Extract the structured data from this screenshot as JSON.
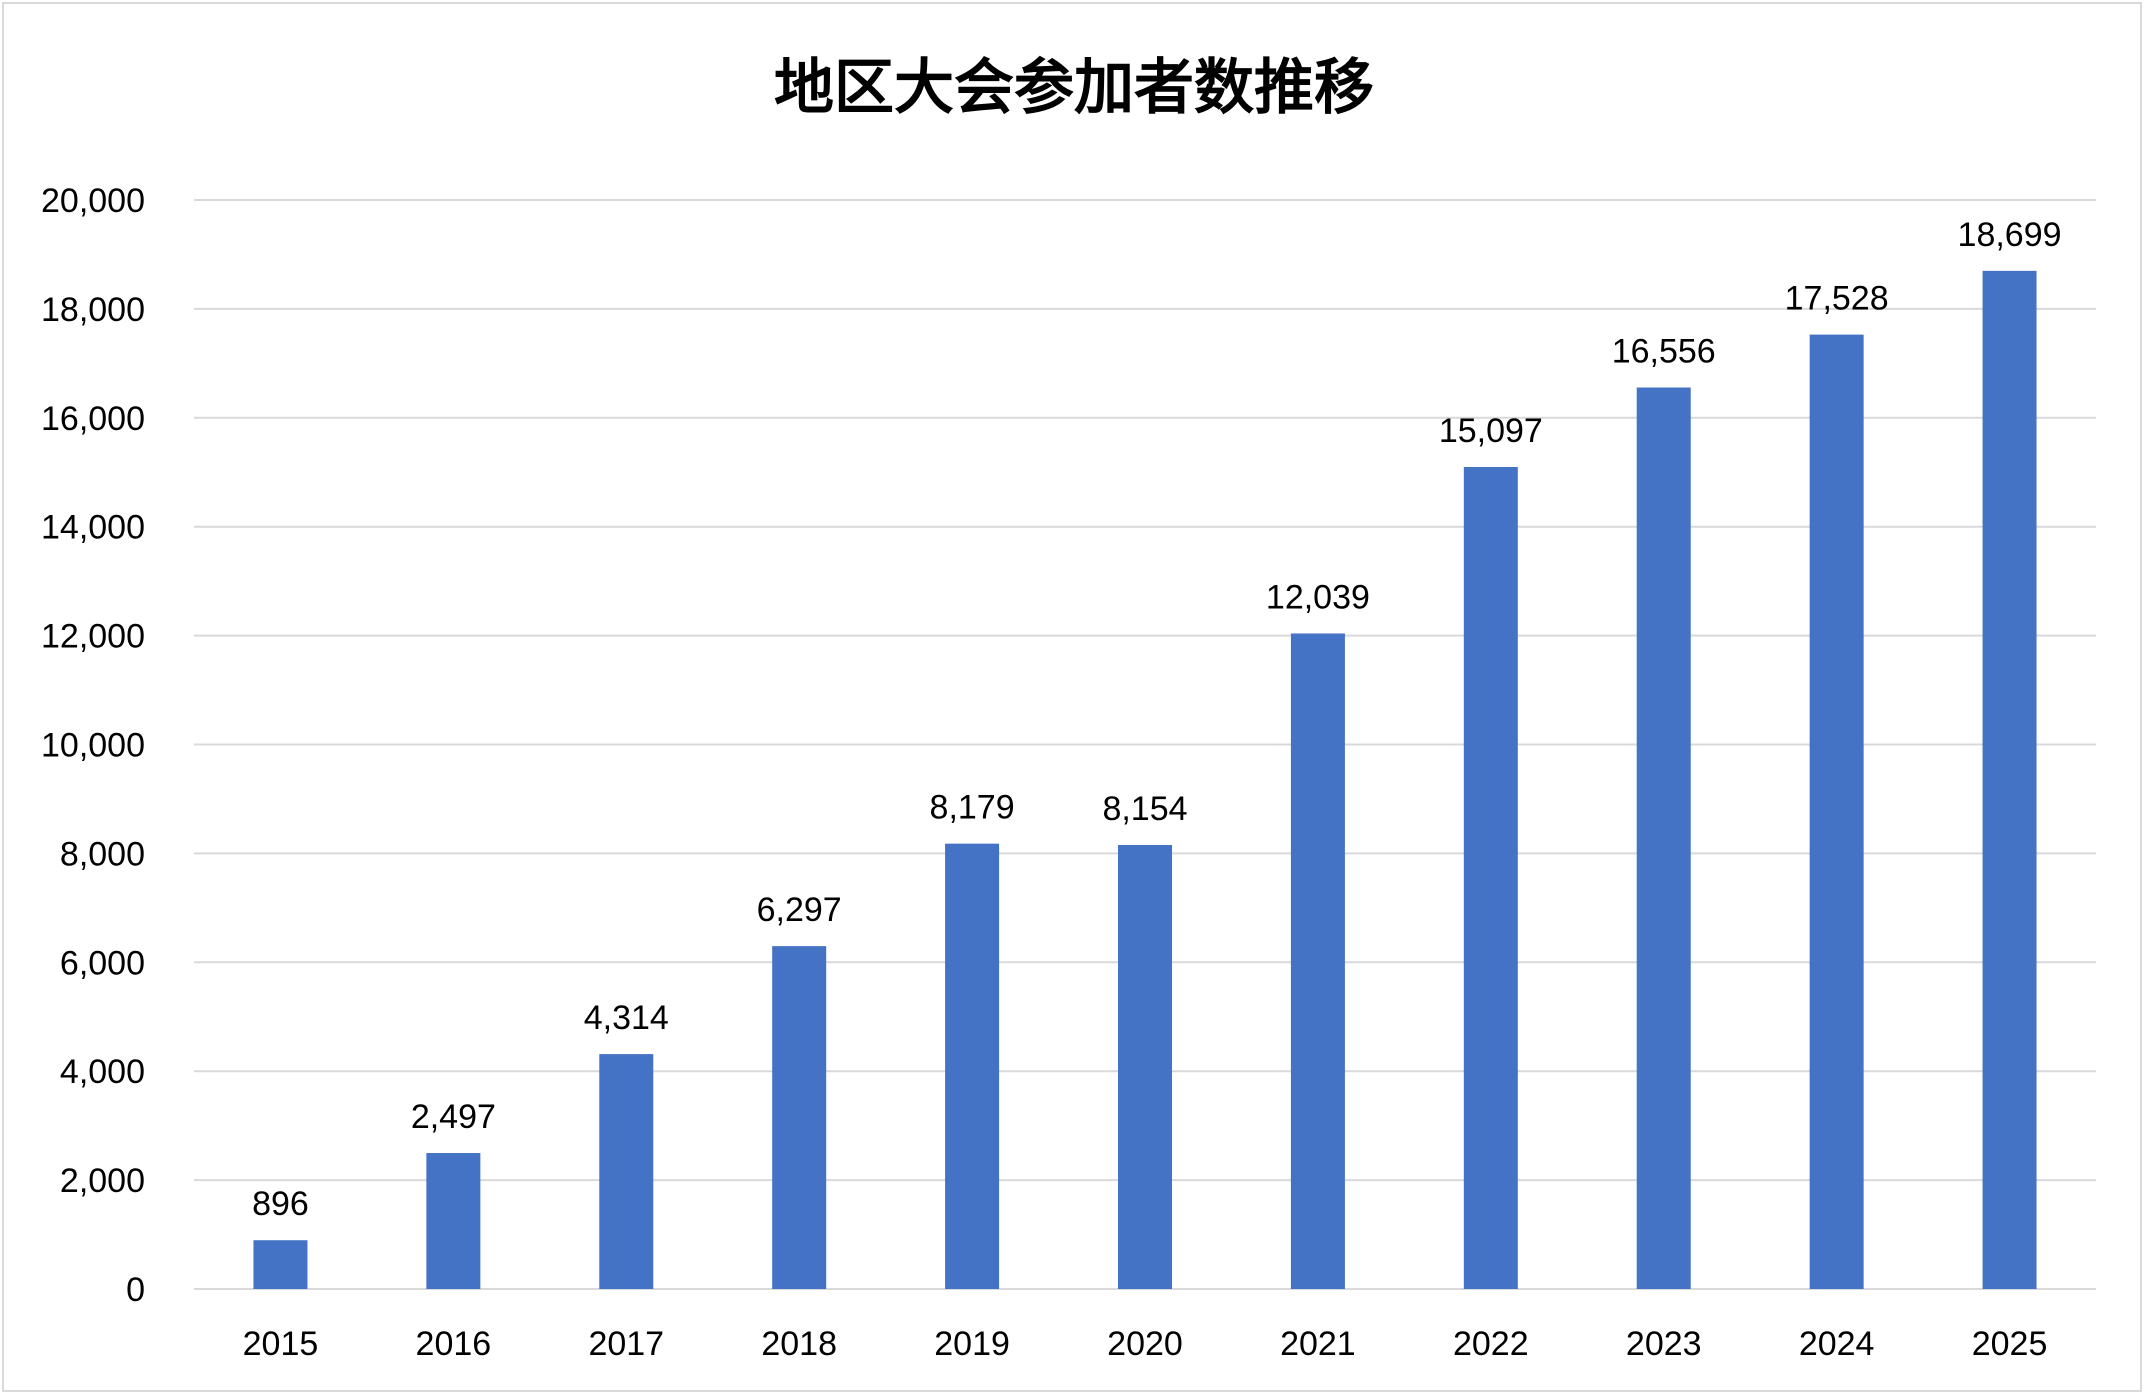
{
  "chart_data": {
    "type": "bar",
    "title": "地区大会参加者数推移",
    "xlabel": "",
    "ylabel": "",
    "categories": [
      "2015",
      "2016",
      "2017",
      "2018",
      "2019",
      "2020",
      "2021",
      "2022",
      "2023",
      "2024",
      "2025"
    ],
    "values": [
      896,
      2497,
      4314,
      6297,
      8179,
      8154,
      12039,
      15097,
      16556,
      17528,
      18699
    ],
    "value_labels": [
      "896",
      "2,497",
      "4,314",
      "6,297",
      "8,179",
      "8,154",
      "12,039",
      "15,097",
      "16,556",
      "17,528",
      "18,699"
    ],
    "ylim": [
      0,
      20000
    ],
    "yticks": [
      0,
      2000,
      4000,
      6000,
      8000,
      10000,
      12000,
      14000,
      16000,
      18000,
      20000
    ],
    "ytick_labels": [
      "0",
      "2,000",
      "4,000",
      "6,000",
      "8,000",
      "10,000",
      "12,000",
      "14,000",
      "16,000",
      "18,000",
      "20,000"
    ],
    "grid": true,
    "legend": "none",
    "bar_color": "#4472C4",
    "grid_color": "#d9d9d9"
  }
}
